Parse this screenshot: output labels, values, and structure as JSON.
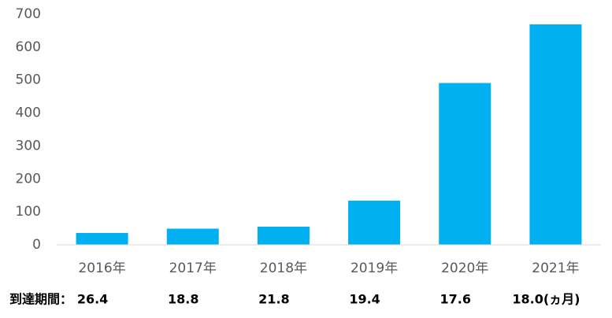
{
  "chart_data": {
    "type": "bar",
    "categories": [
      "2016年",
      "2017年",
      "2018年",
      "2019年",
      "2020年",
      "2021年"
    ],
    "values": [
      36,
      49,
      55,
      134,
      491,
      669
    ],
    "color": "#00b0f0",
    "ylim": [
      0,
      700
    ],
    "yticks": [
      0,
      100,
      200,
      300,
      400,
      500,
      600,
      700
    ],
    "grid": false,
    "period_title": "到達期間：",
    "period_labels": [
      "26.4",
      "18.8",
      "21.8",
      "19.4",
      "17.6",
      "18.0(ヵ月)"
    ]
  }
}
